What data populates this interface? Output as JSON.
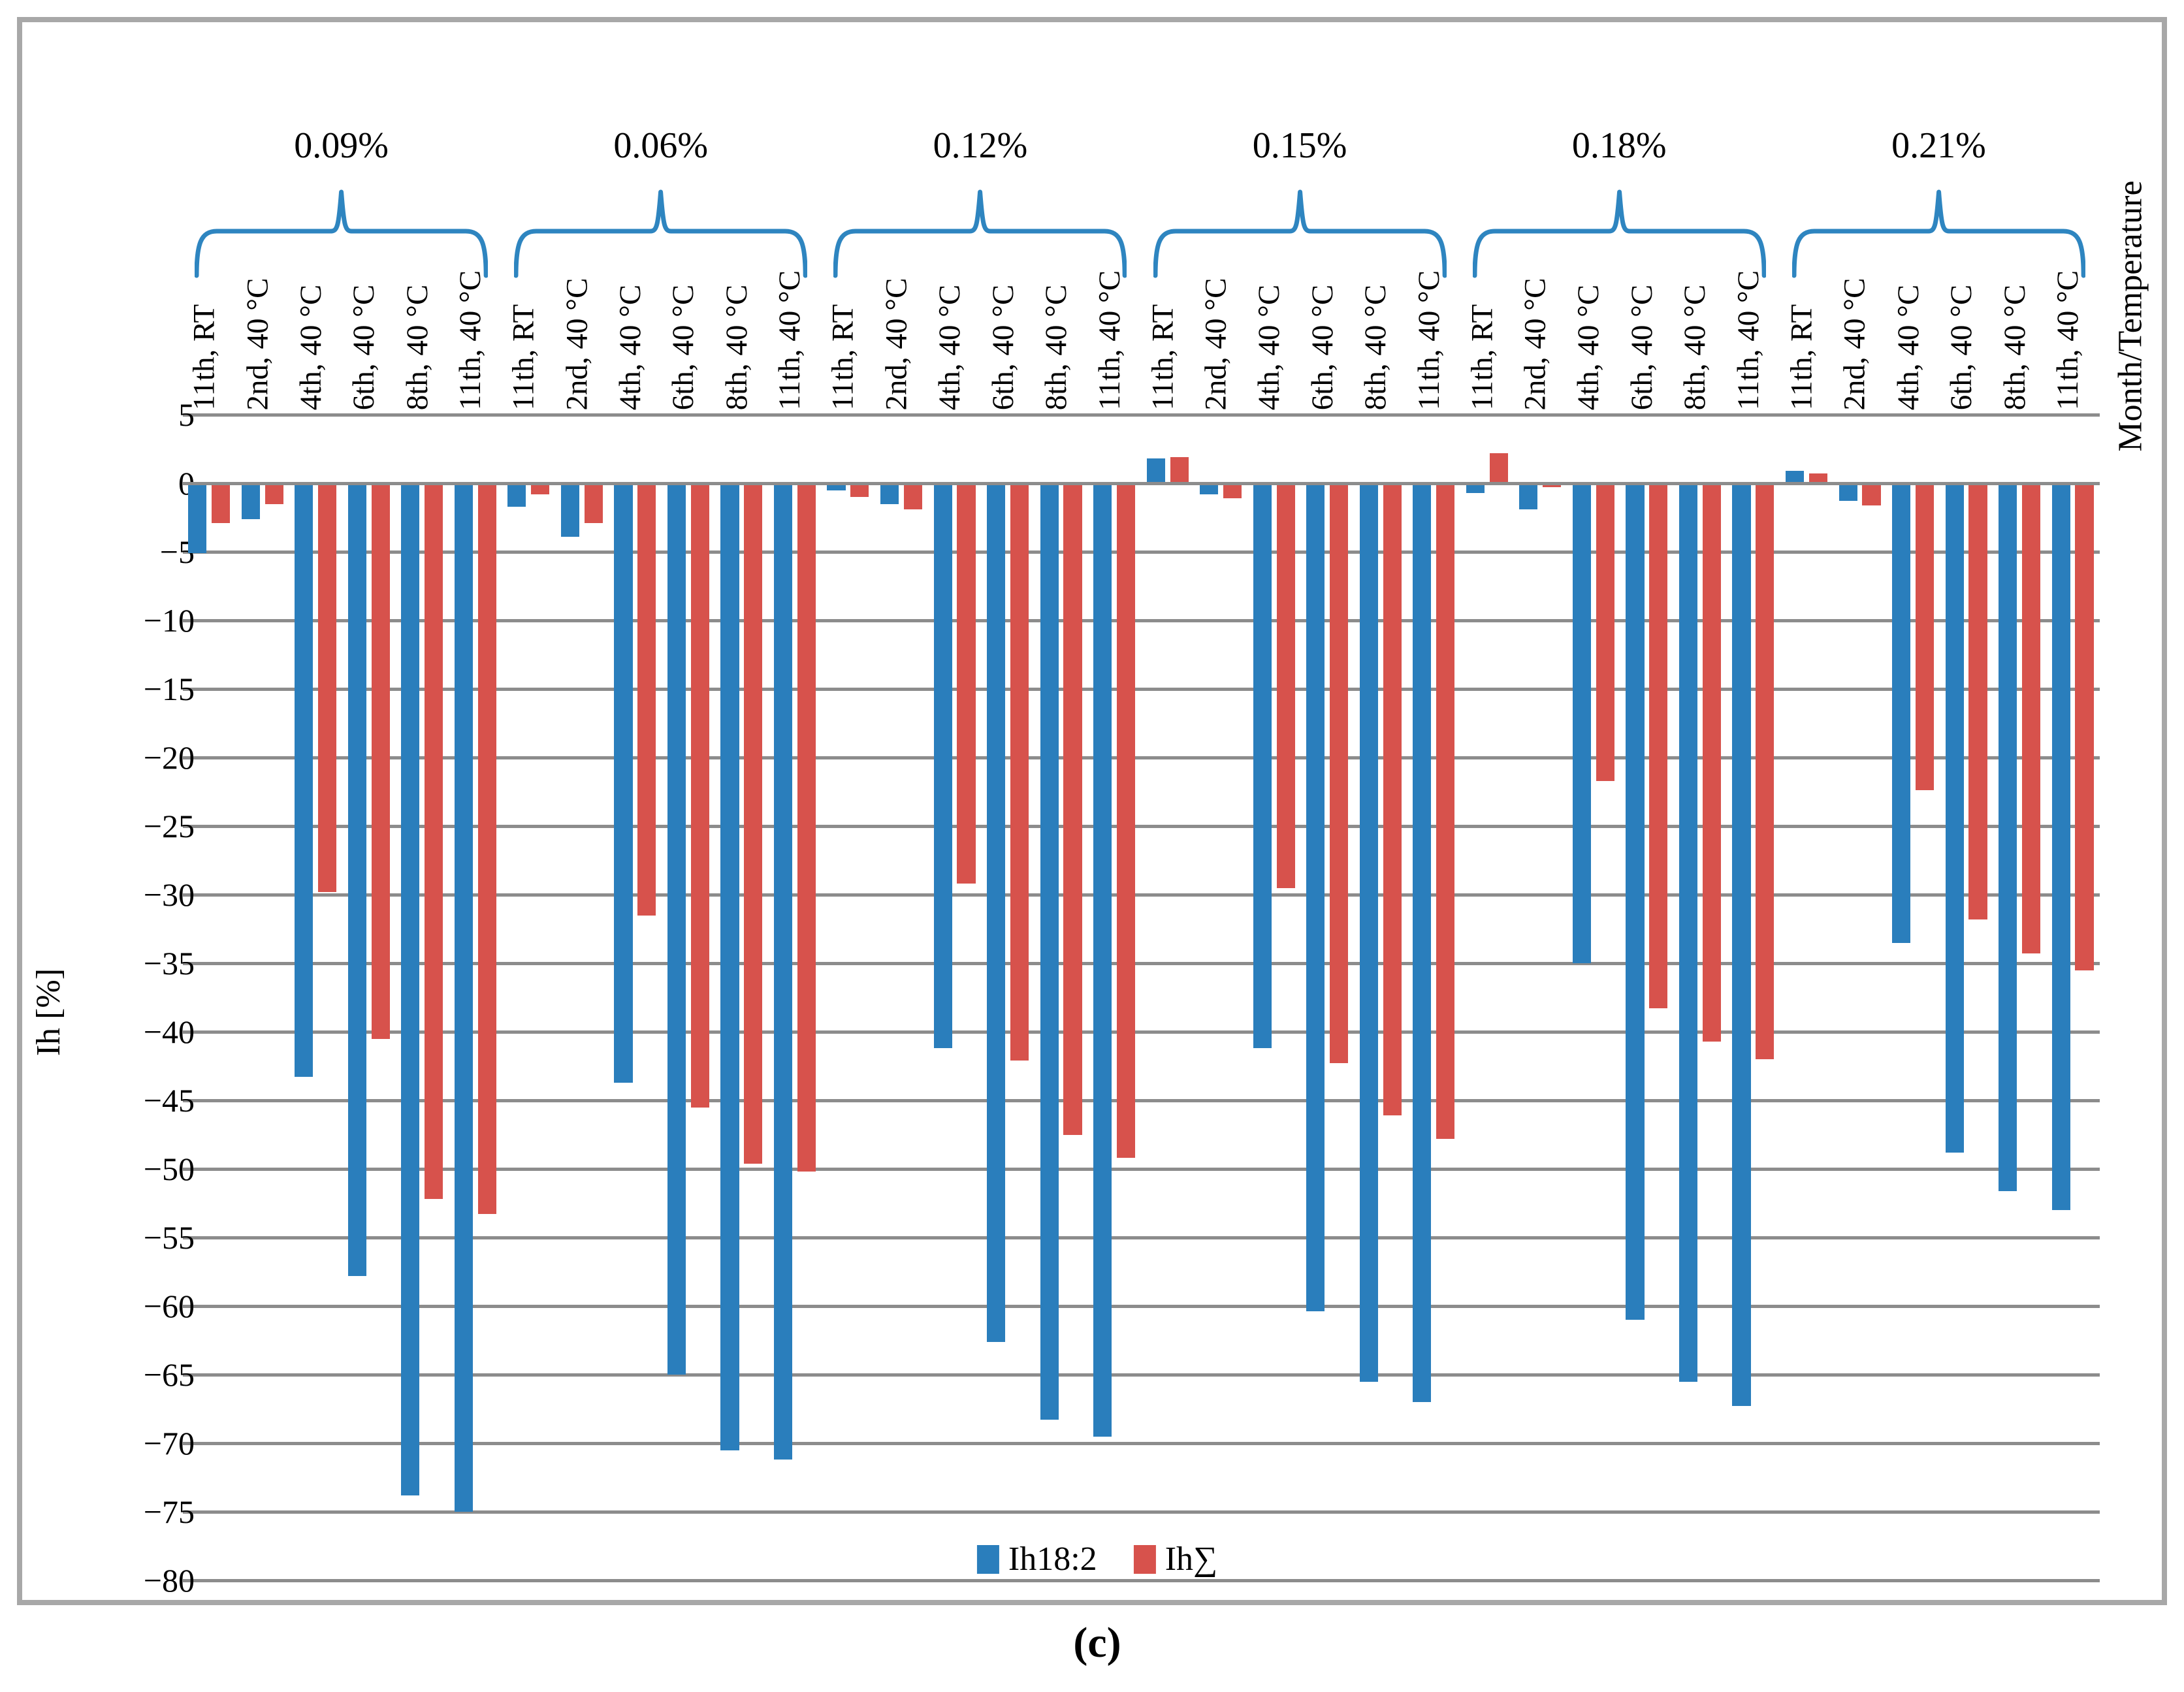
{
  "figure": {
    "caption": "(c)"
  },
  "chart_data": {
    "type": "bar",
    "title": "",
    "ylabel": "Ih [%]",
    "right_label": "Month/Temperature",
    "ylim": [
      -80,
      5
    ],
    "ytick_step": 5,
    "yticks": [
      5,
      0,
      -5,
      -10,
      -15,
      -20,
      -25,
      -30,
      -35,
      -40,
      -45,
      -50,
      -55,
      -60,
      -65,
      -70,
      -75,
      -80
    ],
    "grid": true,
    "legend_position": "bottom-center",
    "series_names": [
      "Ih18:2",
      "Ih∑"
    ],
    "colors": {
      "ih182": "#2a7ebc",
      "ihsum": "#d7524c",
      "brace": "#2e85c0",
      "gridline": "#8c8c8c",
      "border": "#a8a8a8"
    },
    "groups": [
      {
        "label": "0.09%",
        "categories": [
          "11th, RT",
          "2nd, 40 °C",
          "4th, 40 °C",
          "6th, 40 °C",
          "8th, 40 °C",
          "11th, 40 °C"
        ],
        "ih182": [
          -5.1,
          -2.6,
          -43.3,
          -57.8,
          -73.8,
          -75.0
        ],
        "ihsum": [
          -2.9,
          -1.5,
          -29.8,
          -40.5,
          -52.2,
          -53.3
        ]
      },
      {
        "label": "0.06%",
        "categories": [
          "11th, RT",
          "2nd, 40 °C",
          "4th, 40 °C",
          "6th, 40 °C",
          "8th, 40 °C",
          "11th, 40 °C"
        ],
        "ih182": [
          -1.7,
          -3.9,
          -43.7,
          -65.0,
          -70.5,
          -71.2
        ],
        "ihsum": [
          -0.8,
          -2.9,
          -31.5,
          -45.5,
          -49.6,
          -50.2
        ]
      },
      {
        "label": "0.12%",
        "categories": [
          "11th, RT",
          "2nd, 40 °C",
          "4th, 40 °C",
          "6th, 40 °C",
          "8th, 40 °C",
          "11th, 40 °C"
        ],
        "ih182": [
          -0.5,
          -1.5,
          -41.2,
          -62.6,
          -68.3,
          -69.5
        ],
        "ihsum": [
          -1.0,
          -1.9,
          -29.2,
          -42.1,
          -47.5,
          -49.2
        ]
      },
      {
        "label": "0.15%",
        "categories": [
          "11th, RT",
          "2nd, 40 °C",
          "4th, 40 °C",
          "6th, 40 °C",
          "8th, 40 °C",
          "11th, 40 °C"
        ],
        "ih182": [
          1.8,
          -0.8,
          -41.2,
          -60.4,
          -65.5,
          -67.0
        ],
        "ihsum": [
          1.9,
          -1.1,
          -29.5,
          -42.3,
          -46.1,
          -47.8
        ]
      },
      {
        "label": "0.18%",
        "categories": [
          "11th, RT",
          "2nd, 40 °C",
          "4th, 40 °C",
          "6th, 40 °C",
          "8th, 40 °C",
          "11th, 40 °C"
        ],
        "ih182": [
          -0.7,
          -1.9,
          -35.0,
          -61.0,
          -65.5,
          -67.3
        ],
        "ihsum": [
          2.2,
          -0.3,
          -21.7,
          -38.3,
          -40.7,
          -42.0
        ]
      },
      {
        "label": "0.21%",
        "categories": [
          "11th, RT",
          "2nd, 40 °C",
          "4th, 40 °C",
          "6th, 40 °C",
          "8th, 40 °C",
          "11th, 40 °C"
        ],
        "ih182": [
          0.9,
          -1.3,
          -33.5,
          -48.8,
          -51.6,
          -53.0
        ],
        "ihsum": [
          0.7,
          -1.6,
          -22.4,
          -31.8,
          -34.3,
          -35.5
        ]
      }
    ]
  }
}
